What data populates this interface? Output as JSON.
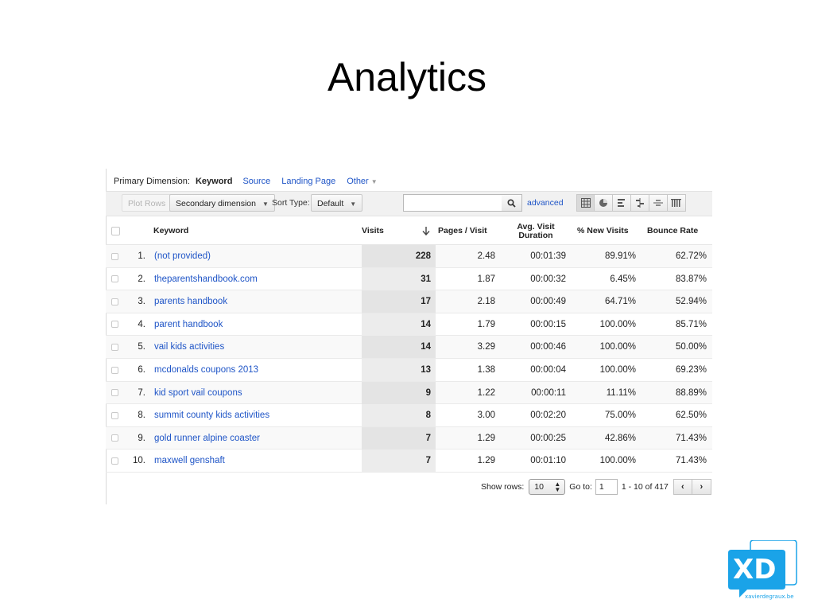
{
  "slide": {
    "title": "Analytics"
  },
  "dimension_bar": {
    "label": "Primary Dimension:",
    "active": "Keyword",
    "links": [
      "Source",
      "Landing Page"
    ],
    "other": "Other"
  },
  "toolbar": {
    "plot_rows": "Plot Rows",
    "secondary_dimension": "Secondary dimension",
    "sort_type_label": "Sort Type:",
    "sort_type_value": "Default",
    "search_value": "",
    "advanced": "advanced",
    "views": [
      "grid-view-icon",
      "pie-view-icon",
      "performance-view-icon",
      "comparison-view-icon",
      "term-cloud-view-icon",
      "pivot-view-icon"
    ],
    "active_view": "grid-view-icon"
  },
  "table": {
    "headers": {
      "keyword": "Keyword",
      "visits": "Visits",
      "pages_visit": "Pages / Visit",
      "avg_visit_line1": "Avg. Visit",
      "avg_visit_line2": "Duration",
      "new_visits": "% New Visits",
      "bounce_rate": "Bounce Rate"
    },
    "sort_indicator": "sort-descending-arrow-icon",
    "rows": [
      {
        "n": "1.",
        "keyword": "(not provided)",
        "visits": "228",
        "pages": "2.48",
        "duration": "00:01:39",
        "new": "89.91%",
        "bounce": "62.72%"
      },
      {
        "n": "2.",
        "keyword": "theparentshandbook.com",
        "visits": "31",
        "pages": "1.87",
        "duration": "00:00:32",
        "new": "6.45%",
        "bounce": "83.87%"
      },
      {
        "n": "3.",
        "keyword": "parents handbook",
        "visits": "17",
        "pages": "2.18",
        "duration": "00:00:49",
        "new": "64.71%",
        "bounce": "52.94%"
      },
      {
        "n": "4.",
        "keyword": "parent handbook",
        "visits": "14",
        "pages": "1.79",
        "duration": "00:00:15",
        "new": "100.00%",
        "bounce": "85.71%"
      },
      {
        "n": "5.",
        "keyword": "vail kids activities",
        "visits": "14",
        "pages": "3.29",
        "duration": "00:00:46",
        "new": "100.00%",
        "bounce": "50.00%"
      },
      {
        "n": "6.",
        "keyword": "mcdonalds coupons 2013",
        "visits": "13",
        "pages": "1.38",
        "duration": "00:00:04",
        "new": "100.00%",
        "bounce": "69.23%"
      },
      {
        "n": "7.",
        "keyword": "kid sport vail coupons",
        "visits": "9",
        "pages": "1.22",
        "duration": "00:00:11",
        "new": "11.11%",
        "bounce": "88.89%"
      },
      {
        "n": "8.",
        "keyword": "summit county kids activities",
        "visits": "8",
        "pages": "3.00",
        "duration": "00:02:20",
        "new": "75.00%",
        "bounce": "62.50%"
      },
      {
        "n": "9.",
        "keyword": "gold runner alpine coaster",
        "visits": "7",
        "pages": "1.29",
        "duration": "00:00:25",
        "new": "42.86%",
        "bounce": "71.43%"
      },
      {
        "n": "10.",
        "keyword": "maxwell genshaft",
        "visits": "7",
        "pages": "1.29",
        "duration": "00:01:10",
        "new": "100.00%",
        "bounce": "71.43%"
      }
    ]
  },
  "pager": {
    "show_rows_label": "Show rows:",
    "show_rows_value": "10",
    "goto_label": "Go to:",
    "goto_value": "1",
    "range": "1 - 10 of 417",
    "prev": "‹",
    "next": "›"
  },
  "logo": {
    "mark": "XD",
    "domain": "xavierdegraux.be",
    "color": "#1aa3e8"
  }
}
